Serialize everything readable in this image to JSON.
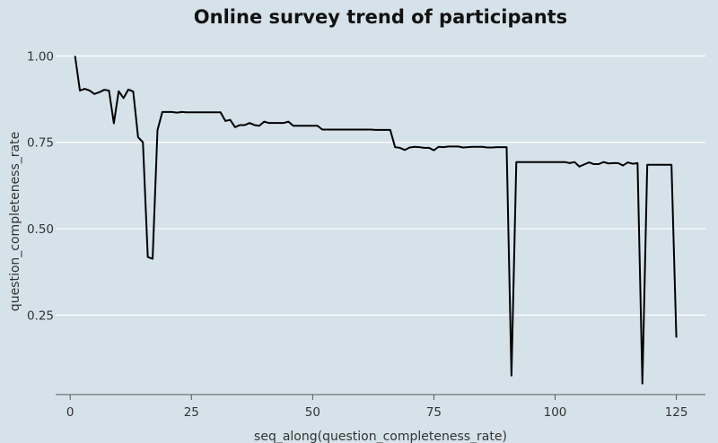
{
  "chart_data": {
    "type": "line",
    "title": "Online survey trend of participants",
    "xlabel": "seq_along(question_completeness_rate)",
    "ylabel": "question_completeness_rate",
    "xlim": [
      -3,
      131
    ],
    "ylim": [
      0.02,
      1.04
    ],
    "xticks": [
      0,
      25,
      50,
      75,
      100,
      125
    ],
    "yticks": [
      0.25,
      0.5,
      0.75,
      1.0
    ],
    "xtick_labels": [
      "0",
      "25",
      "50",
      "75",
      "100",
      "125"
    ],
    "ytick_labels": [
      "0.25",
      "0.50",
      "0.75",
      "1.00"
    ],
    "grid": "horizontal",
    "series": [
      {
        "x": [
          1,
          2,
          3,
          4,
          5,
          6,
          7,
          8,
          9,
          10,
          11,
          12,
          13,
          14,
          15,
          16,
          17,
          18,
          19,
          20,
          21,
          22,
          23,
          24,
          25,
          26,
          27,
          28,
          29,
          30,
          31,
          32,
          33,
          34,
          35,
          36,
          37,
          38,
          39,
          40,
          41,
          42,
          43,
          44,
          45,
          46,
          47,
          48,
          49,
          50,
          51,
          52,
          53,
          54,
          55,
          56,
          57,
          58,
          59,
          60,
          61,
          62,
          63,
          64,
          65,
          66,
          67,
          68,
          69,
          70,
          71,
          72,
          73,
          74,
          75,
          76,
          77,
          78,
          79,
          80,
          81,
          82,
          83,
          84,
          85,
          86,
          87,
          88,
          89,
          90,
          91,
          92,
          93,
          94,
          95,
          96,
          97,
          98,
          99,
          100,
          101,
          102,
          103,
          104,
          105,
          106,
          107,
          108,
          109,
          110,
          111,
          112,
          113,
          114,
          115,
          116,
          117,
          118,
          119,
          120,
          121,
          122,
          123,
          124,
          125
        ],
        "values": [
          1.0,
          0.9,
          0.905,
          0.9,
          0.89,
          0.895,
          0.902,
          0.9,
          0.805,
          0.898,
          0.878,
          0.903,
          0.897,
          0.765,
          0.75,
          0.418,
          0.413,
          0.785,
          0.838,
          0.838,
          0.838,
          0.836,
          0.838,
          0.837,
          0.837,
          0.837,
          0.837,
          0.837,
          0.837,
          0.837,
          0.837,
          0.812,
          0.815,
          0.794,
          0.8,
          0.8,
          0.806,
          0.8,
          0.798,
          0.81,
          0.806,
          0.806,
          0.806,
          0.806,
          0.81,
          0.798,
          0.798,
          0.798,
          0.798,
          0.798,
          0.798,
          0.787,
          0.787,
          0.787,
          0.787,
          0.787,
          0.787,
          0.787,
          0.787,
          0.787,
          0.787,
          0.787,
          0.786,
          0.786,
          0.786,
          0.786,
          0.736,
          0.734,
          0.728,
          0.735,
          0.737,
          0.736,
          0.734,
          0.734,
          0.727,
          0.737,
          0.736,
          0.738,
          0.738,
          0.738,
          0.735,
          0.736,
          0.737,
          0.737,
          0.737,
          0.735,
          0.735,
          0.736,
          0.736,
          0.736,
          0.075,
          0.693,
          0.693,
          0.693,
          0.693,
          0.693,
          0.693,
          0.693,
          0.693,
          0.693,
          0.693,
          0.693,
          0.69,
          0.693,
          0.68,
          0.686,
          0.692,
          0.687,
          0.687,
          0.693,
          0.689,
          0.69,
          0.69,
          0.683,
          0.692,
          0.688,
          0.69,
          0.052,
          0.685,
          0.685,
          0.685,
          0.685,
          0.685,
          0.685,
          0.185
        ]
      }
    ]
  }
}
